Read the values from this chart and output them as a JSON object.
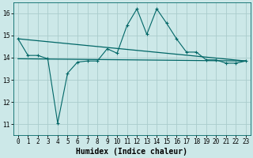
{
  "x": [
    0,
    1,
    2,
    3,
    4,
    5,
    6,
    7,
    8,
    9,
    10,
    11,
    12,
    13,
    14,
    15,
    16,
    17,
    18,
    19,
    20,
    21,
    22,
    23
  ],
  "line1": [
    14.85,
    14.1,
    14.1,
    13.95,
    11.05,
    13.3,
    13.8,
    13.85,
    13.85,
    14.4,
    14.2,
    15.45,
    16.2,
    15.05,
    16.2,
    15.55,
    14.85,
    14.25,
    14.25,
    13.9,
    13.9,
    13.75,
    13.75,
    13.85
  ],
  "trend1_x": [
    0,
    23
  ],
  "trend1_y": [
    14.85,
    13.85
  ],
  "trend2_x": [
    0,
    23
  ],
  "trend2_y": [
    13.95,
    13.85
  ],
  "bg_color": "#cce8e8",
  "line_color": "#006666",
  "grid_color": "#aacccc",
  "xlabel": "Humidex (Indice chaleur)",
  "xlabel_fontsize": 7,
  "tick_fontsize": 5.5,
  "yticks": [
    11,
    12,
    13,
    14,
    15,
    16
  ],
  "xticks": [
    0,
    1,
    2,
    3,
    4,
    5,
    6,
    7,
    8,
    9,
    10,
    11,
    12,
    13,
    14,
    15,
    16,
    17,
    18,
    19,
    20,
    21,
    22,
    23
  ],
  "ylim": [
    10.5,
    16.5
  ],
  "xlim": [
    -0.5,
    23.5
  ]
}
